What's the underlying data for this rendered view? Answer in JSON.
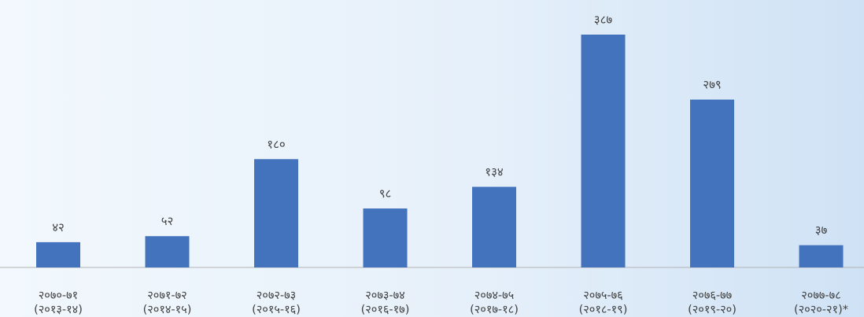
{
  "chart_data": {
    "type": "bar",
    "title": "",
    "xlabel": "",
    "ylabel": "",
    "bar_color": "#4473bd",
    "axis_color": "#b3b3b3",
    "grid": false,
    "legend": "none",
    "ylim": [
      0,
      387
    ],
    "categories": [
      {
        "line1": "२०७०-७१",
        "line2": "(२०१३-१४)"
      },
      {
        "line1": "२०७१-७२",
        "line2": "(२०१४-१५)"
      },
      {
        "line1": "२०७२-७३",
        "line2": "(२०१५-१६)"
      },
      {
        "line1": "२०७३-७४",
        "line2": "(२०१६-१७)"
      },
      {
        "line1": "२०७४-७५",
        "line2": "(२०१७-१८)"
      },
      {
        "line1": "२०७५-७६",
        "line2": "(२०१८-१९)"
      },
      {
        "line1": "२०७६-७७",
        "line2": "(२०१९-२०)"
      },
      {
        "line1": "२०७७-७८",
        "line2": "(२०२०-२१)*"
      }
    ],
    "values": [
      42,
      52,
      180,
      98,
      134,
      387,
      279,
      37
    ],
    "value_labels": [
      "४२",
      "५२",
      "१८०",
      "९८",
      "१३४",
      "३८७",
      "२७९",
      "३७"
    ]
  }
}
